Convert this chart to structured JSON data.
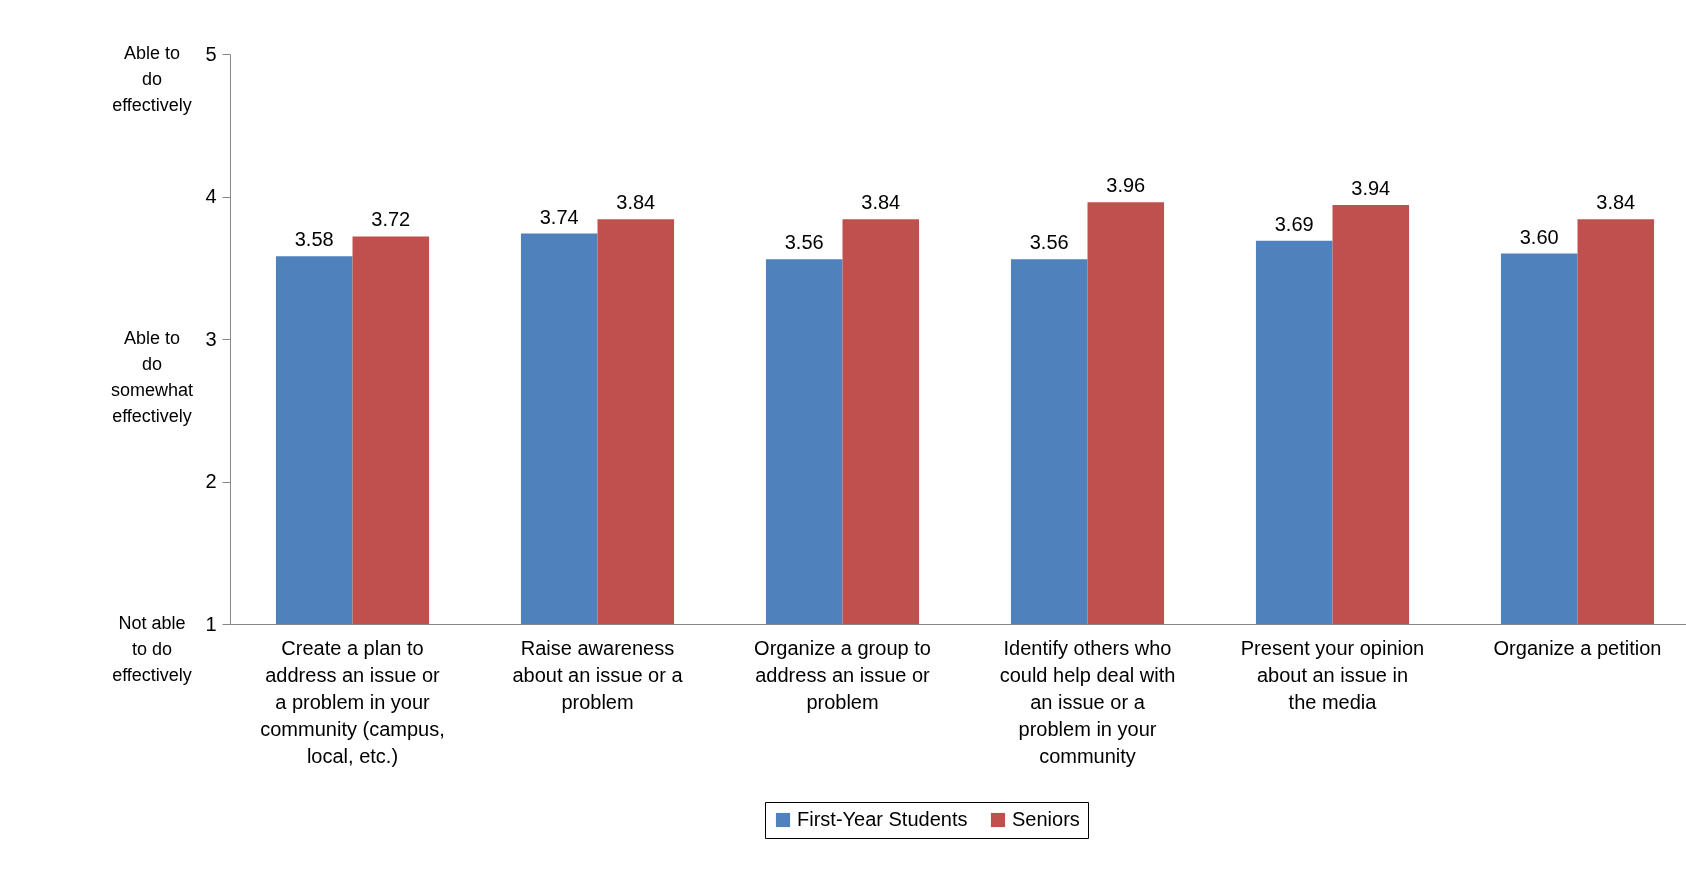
{
  "chart_data": {
    "type": "bar",
    "categories": [
      "Create a plan to address an issue or a problem in your community (campus, local, etc.)",
      "Raise awareness about an issue or a problem",
      "Organize a group to address an issue or problem",
      "Identify others who could help deal with an issue or a problem in your community",
      "Present your opinion about an issue in the media",
      "Organize a petition"
    ],
    "series": [
      {
        "name": "First-Year Students",
        "color": "#4f81bd",
        "values": [
          3.58,
          3.74,
          3.56,
          3.56,
          3.69,
          3.6
        ],
        "value_labels": [
          "3.58",
          "3.74",
          "3.56",
          "3.56",
          "3.69",
          "3.60"
        ]
      },
      {
        "name": "Seniors",
        "color": "#c0504d",
        "values": [
          3.72,
          3.84,
          3.84,
          3.96,
          3.94,
          3.84
        ],
        "value_labels": [
          "3.72",
          "3.84",
          "3.84",
          "3.96",
          "3.94",
          "3.84"
        ]
      }
    ],
    "ylim": [
      1,
      5
    ],
    "yticks": [
      1,
      2,
      3,
      4,
      5
    ],
    "grid": false,
    "legend": "bottom",
    "annotations": [
      "Able to do effectively",
      "Able to do somewhat effectively",
      "Not able to do effectively"
    ]
  }
}
